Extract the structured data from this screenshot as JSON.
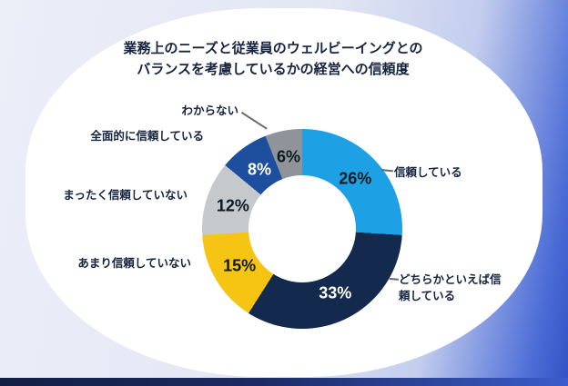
{
  "chart_data": {
    "type": "pie",
    "donut": true,
    "title": "業務上のニーズと従業員のウェルビーイングとのバランスを考慮しているかの経営への信頼度",
    "title_lines": [
      "業務上のニーズと従業員のウェルビーイングとの",
      "バランスを考慮しているかの経営への信頼度"
    ],
    "start_angle_deg": 0,
    "direction": "clockwise",
    "legend_position": "outside-labels",
    "hole_color": "#ffffff",
    "segments": [
      {
        "label": "信頼している",
        "value": 26,
        "percent_label": "26%",
        "color": "#1da1e4",
        "value_text_color": "#101820"
      },
      {
        "label": "どちらかといえば信頼している",
        "value": 33,
        "percent_label": "33%",
        "color": "#13294d",
        "value_text_color": "#ffffff"
      },
      {
        "label": "あまり信頼していない",
        "value": 15,
        "percent_label": "15%",
        "color": "#f6c413",
        "value_text_color": "#101820"
      },
      {
        "label": "まったく信頼していない",
        "value": 12,
        "percent_label": "12%",
        "color": "#c6c9cc",
        "value_text_color": "#101820"
      },
      {
        "label": "全面的に信頼している",
        "value": 8,
        "percent_label": "8%",
        "color": "#1d4f9e",
        "value_text_color": "#ffffff"
      },
      {
        "label": "わからない",
        "value": 6,
        "percent_label": "6%",
        "color": "#8e949a",
        "value_text_color": "#101820"
      }
    ]
  },
  "background": {
    "card_color": "#ffffff",
    "outer_light": "#e8ebf6",
    "outer_accent_blue": "#3152c4",
    "outer_accent_navy": "#131d45"
  }
}
